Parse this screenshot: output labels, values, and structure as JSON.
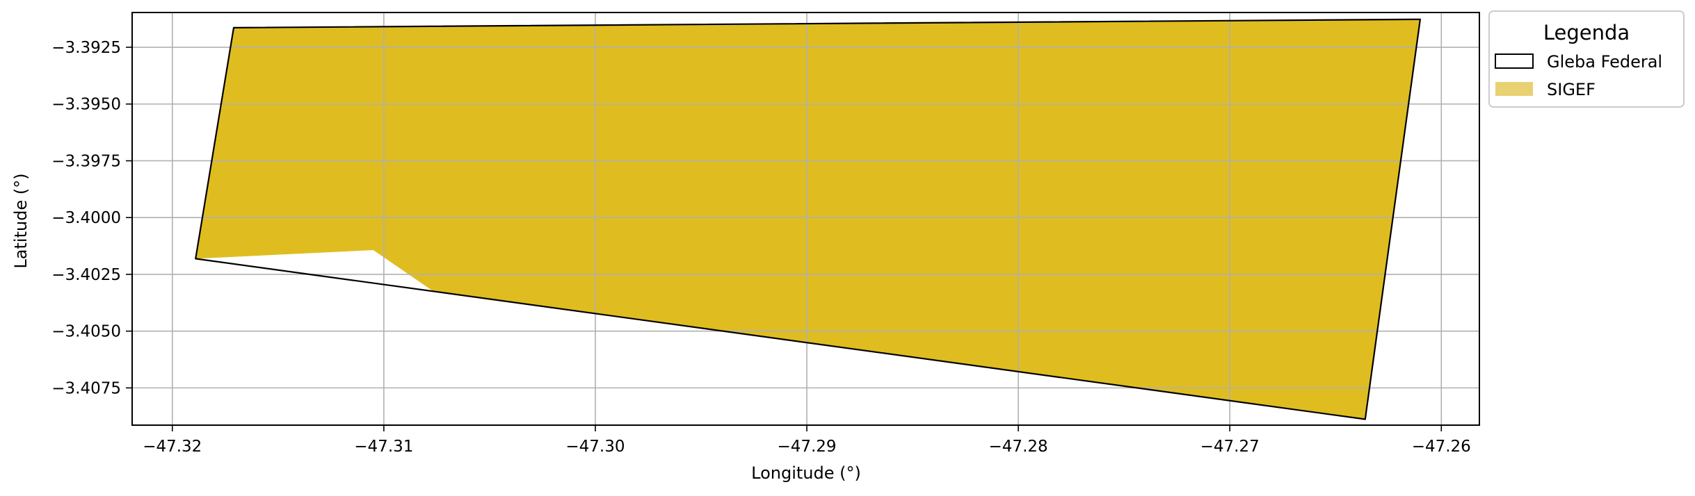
{
  "chart_data": {
    "type": "map",
    "xlabel": "Longitude (°)",
    "ylabel": "Latitude (°)",
    "xlim": [
      -47.3219,
      -47.2582
    ],
    "ylim": [
      -3.40914,
      -3.39097
    ],
    "x_ticks": [
      -47.32,
      -47.31,
      -47.3,
      -47.29,
      -47.28,
      -47.27,
      -47.26
    ],
    "x_tick_labels": [
      "−47.32",
      "−47.31",
      "−47.30",
      "−47.29",
      "−47.28",
      "−47.27",
      "−47.26"
    ],
    "y_ticks": [
      -3.3925,
      -3.395,
      -3.3975,
      -3.4,
      -3.4025,
      -3.405,
      -3.4075
    ],
    "y_tick_labels": [
      "−3.3925",
      "−3.3950",
      "−3.3975",
      "−3.4000",
      "−3.4025",
      "−3.4050",
      "−3.4075"
    ],
    "grid": true,
    "legend": {
      "title": "Legenda",
      "placement": "outside-top-right",
      "entries": [
        {
          "label": "Gleba Federal",
          "style": "outline",
          "edge_color": "#000000",
          "fill_color": "none"
        },
        {
          "label": "SIGEF",
          "style": "fill",
          "fill_color": "#e8d172"
        }
      ]
    },
    "layers": [
      {
        "name": "SIGEF",
        "fill_color": "#dfbd20",
        "coordinates": [
          [
            -47.3171,
            -3.39164
          ],
          [
            -47.261,
            -3.39127
          ],
          [
            -47.2636,
            -3.40888
          ],
          [
            -47.3077,
            -3.40322
          ],
          [
            -47.3105,
            -3.40143
          ],
          [
            -47.3189,
            -3.40181
          ]
        ]
      },
      {
        "name": "Gleba Federal",
        "edge_color": "#000000",
        "coordinates": [
          [
            -47.3171,
            -3.39164
          ],
          [
            -47.261,
            -3.39127
          ],
          [
            -47.2636,
            -3.40888
          ],
          [
            -47.3189,
            -3.40181
          ]
        ]
      }
    ]
  }
}
